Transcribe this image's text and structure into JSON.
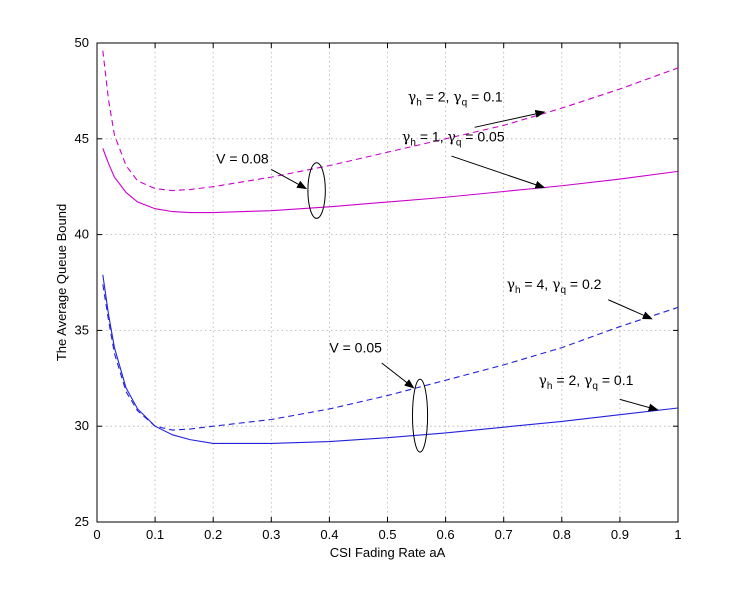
{
  "chart_data": {
    "type": "line",
    "xlabel": "CSI Fading Rate aA",
    "ylabel": "The Average Queue Bound",
    "xlim": [
      0,
      1
    ],
    "ylim": [
      25,
      50
    ],
    "xticks": [
      0,
      0.1,
      0.2,
      0.3,
      0.4,
      0.5,
      0.6,
      0.7,
      0.8,
      0.9,
      1
    ],
    "xtick_labels": [
      "0",
      "0.1",
      "0.2",
      "0.3",
      "0.4",
      "0.5",
      "0.6",
      "0.7",
      "0.8",
      "0.9",
      "1"
    ],
    "yticks": [
      25,
      30,
      35,
      40,
      45,
      50
    ],
    "ytick_labels": [
      "25",
      "30",
      "35",
      "40",
      "45",
      "50"
    ],
    "grid": true,
    "series": [
      {
        "color": "#cc00cc",
        "dash": true,
        "x": [
          0.01,
          0.02,
          0.03,
          0.05,
          0.07,
          0.1,
          0.13,
          0.16,
          0.2,
          0.3,
          0.4,
          0.5,
          0.6,
          0.7,
          0.8,
          0.9,
          1.0
        ],
        "y": [
          49.6,
          47.0,
          45.2,
          43.6,
          42.8,
          42.4,
          42.3,
          42.35,
          42.5,
          43.0,
          43.6,
          44.3,
          45.0,
          45.7,
          46.6,
          47.6,
          48.7
        ]
      },
      {
        "color": "#cc00cc",
        "dash": false,
        "x": [
          0.01,
          0.02,
          0.03,
          0.05,
          0.07,
          0.1,
          0.13,
          0.16,
          0.2,
          0.3,
          0.4,
          0.5,
          0.6,
          0.7,
          0.8,
          0.9,
          1.0
        ],
        "y": [
          44.5,
          43.7,
          43.0,
          42.2,
          41.7,
          41.35,
          41.2,
          41.15,
          41.15,
          41.25,
          41.45,
          41.7,
          41.95,
          42.25,
          42.55,
          42.9,
          43.3
        ]
      },
      {
        "color": "#2222dd",
        "dash": true,
        "x": [
          0.01,
          0.02,
          0.03,
          0.05,
          0.07,
          0.1,
          0.13,
          0.16,
          0.2,
          0.3,
          0.4,
          0.5,
          0.6,
          0.7,
          0.8,
          0.9,
          1.0
        ],
        "y": [
          37.4,
          35.5,
          33.8,
          31.8,
          30.8,
          30.0,
          29.8,
          29.85,
          30.0,
          30.35,
          30.9,
          31.6,
          32.4,
          33.2,
          34.1,
          35.2,
          36.2
        ]
      },
      {
        "color": "#2222dd",
        "dash": false,
        "x": [
          0.01,
          0.02,
          0.03,
          0.05,
          0.07,
          0.1,
          0.13,
          0.16,
          0.2,
          0.3,
          0.4,
          0.5,
          0.6,
          0.7,
          0.8,
          0.9,
          1.0
        ],
        "y": [
          37.9,
          35.8,
          34.1,
          32.0,
          30.9,
          30.0,
          29.55,
          29.3,
          29.1,
          29.1,
          29.2,
          29.4,
          29.65,
          29.95,
          30.25,
          30.6,
          30.95
        ]
      }
    ],
    "annotations": [
      {
        "id": "a1",
        "text_parts": [
          "γ",
          "h",
          " = 2, ",
          "γ",
          "q",
          " = 0.1"
        ],
        "label_at": [
          0.535,
          46.95
        ],
        "arrow_from": [
          0.65,
          45.6
        ],
        "arrow_to": [
          0.77,
          46.4
        ]
      },
      {
        "id": "a2",
        "text_parts": [
          "γ",
          "h",
          " = 1, ",
          "γ",
          "q",
          " = 0.05"
        ],
        "label_at": [
          0.525,
          44.85
        ],
        "arrow_from": [
          0.61,
          44.1
        ],
        "arrow_to": [
          0.77,
          42.45
        ]
      },
      {
        "id": "a3",
        "text_parts": [
          "γ",
          "h",
          " = 4, ",
          "γ",
          "q",
          " = 0.2"
        ],
        "label_at": [
          0.705,
          37.15
        ],
        "arrow_from": [
          0.88,
          36.6
        ],
        "arrow_to": [
          0.955,
          35.6
        ]
      },
      {
        "id": "a4",
        "text_parts": [
          "γ",
          "h",
          " = 2, ",
          "γ",
          "q",
          " = 0.1"
        ],
        "label_at": [
          0.76,
          32.15
        ],
        "arrow_from": [
          0.9,
          31.4
        ],
        "arrow_to": [
          0.965,
          30.85
        ]
      },
      {
        "id": "a5",
        "text": "V = 0.08",
        "label_at": [
          0.205,
          43.7
        ],
        "arrow_from": [
          0.3,
          43.4
        ],
        "arrow_to": [
          0.36,
          42.4
        ]
      },
      {
        "id": "a6",
        "text": "V = 0.05",
        "label_at": [
          0.4,
          33.85
        ],
        "arrow_from": [
          0.49,
          33.3
        ],
        "arrow_to": [
          0.545,
          32.0
        ]
      }
    ],
    "ellipses": [
      {
        "id": "e1",
        "center": [
          0.378,
          42.3
        ],
        "rx": 0.015,
        "ry": 1.45
      },
      {
        "id": "e2",
        "center": [
          0.556,
          30.55
        ],
        "rx": 0.013,
        "ry": 1.9
      }
    ]
  }
}
